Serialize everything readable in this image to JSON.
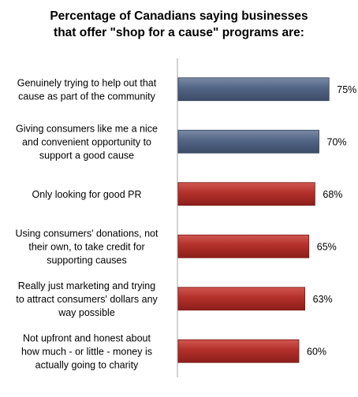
{
  "chart_data": {
    "type": "bar",
    "orientation": "horizontal",
    "title_lines": [
      "Percentage of Canadians saying businesses",
      "that offer \"shop for a cause\" programs are:"
    ],
    "categories": [
      [
        "Genuinely trying to help out that",
        "cause as part of the community"
      ],
      [
        "Giving consumers like me a nice",
        "and convenient opportunity to",
        "support a good cause"
      ],
      [
        "Only looking for good PR"
      ],
      [
        "Using consumers' donations, not",
        "their own, to take credit for",
        "supporting causes"
      ],
      [
        "Really just marketing and trying",
        "to attract consumers' dollars any",
        "way possible"
      ],
      [
        "Not upfront and honest about",
        "how much - or little - money is",
        "actually going to charity"
      ]
    ],
    "values": [
      75,
      70,
      68,
      65,
      63,
      60
    ],
    "value_labels": [
      "75%",
      "70%",
      "68%",
      "65%",
      "63%",
      "60%"
    ],
    "colors": [
      "#4f6282",
      "#4f6282",
      "#b0302a",
      "#b0302a",
      "#b0302a",
      "#b0302a"
    ],
    "axis_color": "#a6a6a6",
    "xlim": [
      0,
      100
    ],
    "grid": false,
    "legend": "none"
  }
}
